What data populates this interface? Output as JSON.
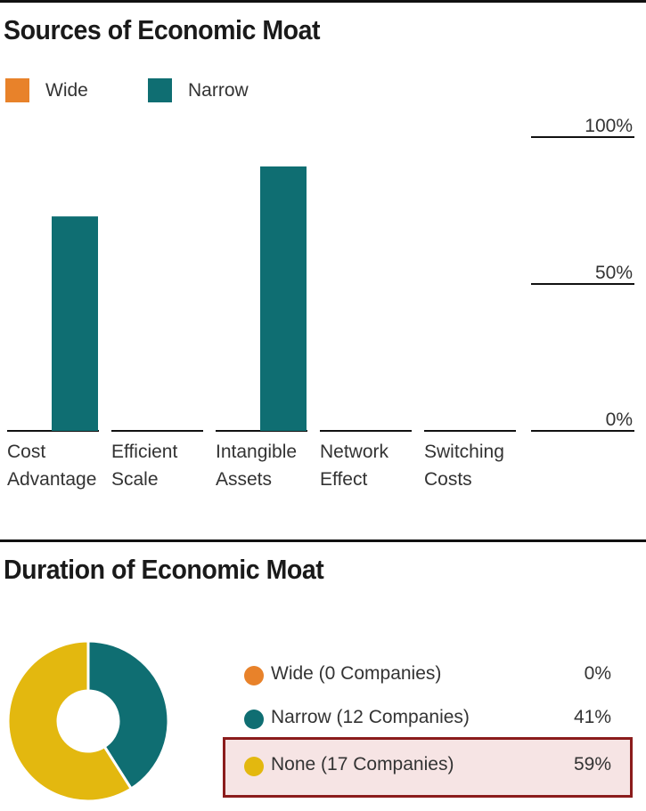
{
  "sources": {
    "title": "Sources of Economic Moat"
  },
  "duration": {
    "title": "Duration of Economic Moat",
    "items": [
      {
        "label": "Wide (0 Companies)",
        "percent": "0%"
      },
      {
        "label": "Narrow (12 Companies)",
        "percent": "41%"
      },
      {
        "label": "None (17 Companies)",
        "percent": "59%"
      }
    ]
  },
  "colors": {
    "wide": "#e8822a",
    "narrow": "#0f6e72",
    "none": "#e3b80f",
    "highlight_border": "#8b1c1c",
    "highlight_fill": "#f6e4e4"
  },
  "chart_data": [
    {
      "type": "bar",
      "title": "Sources of Economic Moat",
      "categories": [
        "Cost Advantage",
        "Efficient Scale",
        "Intangible Assets",
        "Network Effect",
        "Switching Costs"
      ],
      "category_lines": [
        [
          "Cost",
          "Advantage"
        ],
        [
          "Efficient",
          "Scale"
        ],
        [
          "Intangible",
          "Assets"
        ],
        [
          "Network",
          "Effect"
        ],
        [
          "Switching",
          "Costs"
        ]
      ],
      "series": [
        {
          "name": "Wide",
          "color": "#e8822a",
          "values": [
            0,
            0,
            0,
            0,
            0
          ]
        },
        {
          "name": "Narrow",
          "color": "#0f6e72",
          "values": [
            73,
            0,
            90,
            0,
            0
          ]
        }
      ],
      "ylim": [
        0,
        100
      ],
      "yticks": [
        0,
        50,
        100
      ],
      "ytick_labels": [
        "0%",
        "50%",
        "100%"
      ],
      "legend": "top-left"
    },
    {
      "type": "pie",
      "title": "Duration of Economic Moat",
      "slices": [
        {
          "name": "Wide (0 Companies)",
          "value": 0,
          "color": "#e8822a"
        },
        {
          "name": "Narrow (12 Companies)",
          "value": 41,
          "color": "#0f6e72"
        },
        {
          "name": "None (17 Companies)",
          "value": 59,
          "color": "#e3b80f"
        }
      ]
    }
  ]
}
